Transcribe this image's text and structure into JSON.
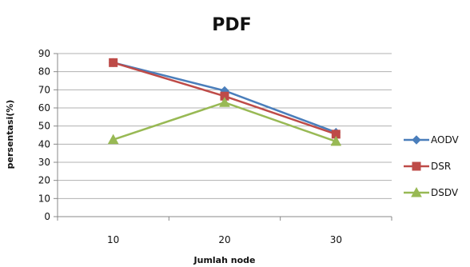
{
  "chart_data": {
    "type": "line",
    "title": "PDF",
    "xlabel": "Jumlah node",
    "ylabel": "persentasi(%)",
    "categories": [
      "10",
      "20",
      "30"
    ],
    "ylim": [
      0,
      90
    ],
    "yticks": [
      0,
      10,
      20,
      30,
      40,
      50,
      60,
      70,
      80,
      90
    ],
    "grid": true,
    "legend_position": "right",
    "series": [
      {
        "name": "AODV",
        "values": [
          85,
          69.5,
          46.5
        ],
        "color": "#4a7ebb",
        "marker": "diamond"
      },
      {
        "name": "DSR",
        "values": [
          85,
          66.5,
          45.5
        ],
        "color": "#be4b48",
        "marker": "square"
      },
      {
        "name": "DSDV",
        "values": [
          42.5,
          63,
          41.5
        ],
        "color": "#98b954",
        "marker": "triangle"
      }
    ]
  }
}
